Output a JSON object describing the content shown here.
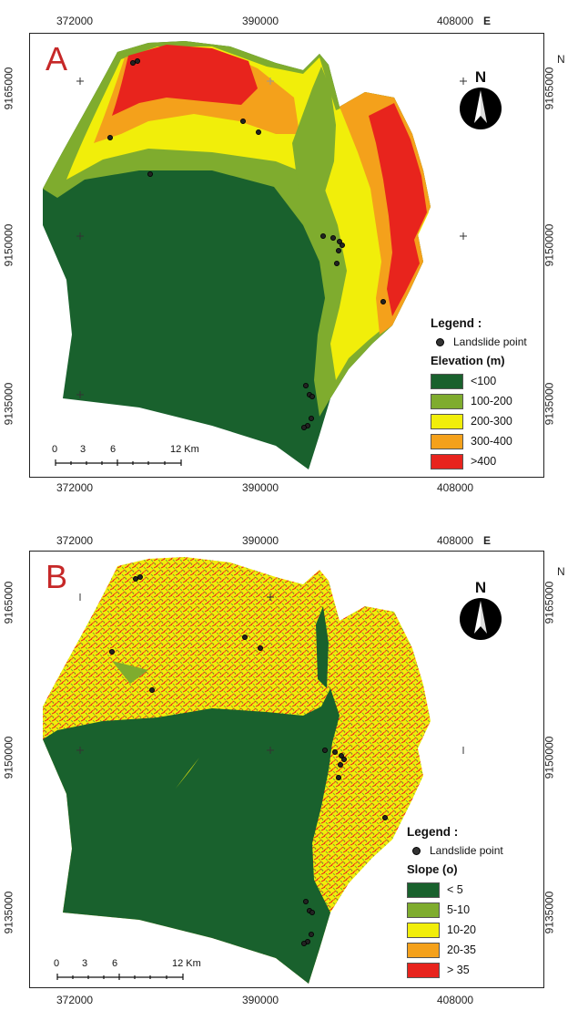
{
  "panels": {
    "a": {
      "letter": "A",
      "top_ticks": [
        "372000",
        "390000",
        "408000"
      ],
      "bottom_ticks": [
        "372000",
        "390000",
        "408000"
      ],
      "east_label": "E",
      "north_label_right": "N",
      "left_ticks": [
        "9165000",
        "9150000",
        "9135000"
      ],
      "right_ticks": [
        "9165000",
        "9150000",
        "9135000"
      ],
      "north_arrow": "N",
      "legend": {
        "title": "Legend :",
        "point_label": "Landslide point",
        "subtitle": "Elevation (m)",
        "classes": [
          {
            "label": "<100",
            "color": "#19612d"
          },
          {
            "label": "100-200",
            "color": "#7fac2e"
          },
          {
            "label": "200-300",
            "color": "#f1ee0a"
          },
          {
            "label": "300-400",
            "color": "#f4a11b"
          },
          {
            "label": ">400",
            "color": "#e8241d"
          }
        ]
      },
      "scale": {
        "ticks": [
          "0",
          "3",
          "6",
          "12 Km"
        ]
      }
    },
    "b": {
      "letter": "B",
      "top_ticks": [
        "372000",
        "390000",
        "408000"
      ],
      "bottom_ticks": [
        "372000",
        "390000",
        "408000"
      ],
      "east_label": "E",
      "north_label_right": "N",
      "left_ticks": [
        "9165000",
        "9150000",
        "9135000"
      ],
      "right_ticks": [
        "9165000",
        "9150000",
        "9135000"
      ],
      "north_arrow": "N",
      "legend": {
        "title": "Legend :",
        "point_label": "Landslide point",
        "subtitle": "Slope (o)",
        "classes": [
          {
            "label": "< 5",
            "color": "#19612d"
          },
          {
            "label": "5-10",
            "color": "#7fac2e"
          },
          {
            "label": "10-20",
            "color": "#f1ee0a"
          },
          {
            "label": "20-35",
            "color": "#f4a11b"
          },
          {
            "label": "> 35",
            "color": "#e8241d"
          }
        ]
      },
      "scale": {
        "ticks": [
          "0",
          "3",
          "6",
          "12 Km"
        ]
      }
    }
  }
}
